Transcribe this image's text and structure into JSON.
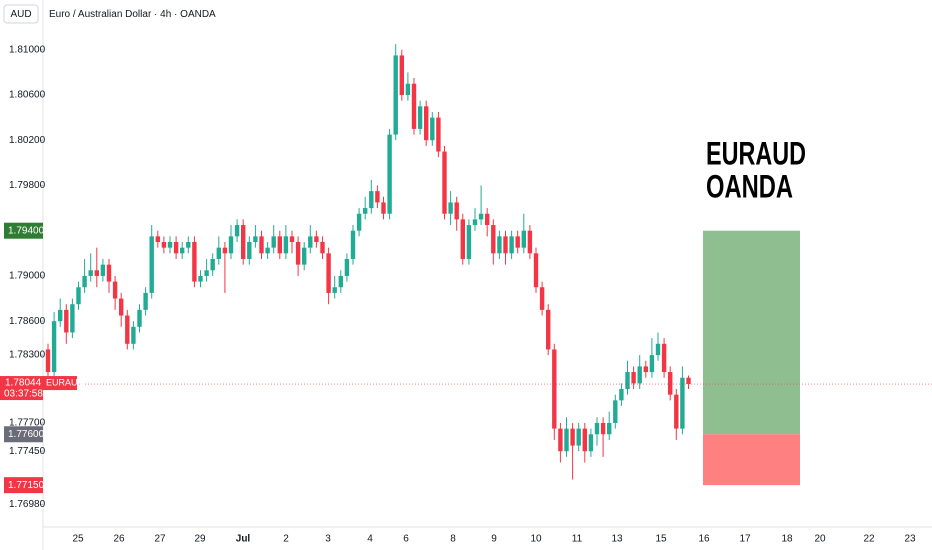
{
  "chart_data": {
    "type": "candlestick",
    "currency": "AUD",
    "title": "Euro / Australian Dollar · 4h · OANDA",
    "annotation": [
      "EURAUD",
      "OANDA"
    ],
    "colors": {
      "up": "#22ab94",
      "down": "#f23645"
    },
    "x_labels": [
      "25",
      "26",
      "27",
      "29",
      "Jul",
      "2",
      "3",
      "4",
      "6",
      "8",
      "9",
      "10",
      "11",
      "13",
      "15",
      "16",
      "17",
      "18",
      "20",
      "22",
      "23"
    ],
    "ylim": [
      1.8144,
      1.7678
    ],
    "yticks": [
      {
        "value": 1.81,
        "label": "1.81000"
      },
      {
        "value": 1.806,
        "label": "1.80600"
      },
      {
        "value": 1.802,
        "label": "1.80200"
      },
      {
        "value": 1.798,
        "label": "1.79800"
      },
      {
        "value": 1.79,
        "label": "1.79000"
      },
      {
        "value": 1.786,
        "label": "1.78600"
      },
      {
        "value": 1.783,
        "label": "1.78300"
      },
      {
        "value": 1.777,
        "label": "1.77700"
      },
      {
        "value": 1.7745,
        "label": "1.77450"
      },
      {
        "value": 1.7698,
        "label": "1.76980"
      }
    ],
    "current_price": {
      "value": 1.78044,
      "label": "1.78044",
      "symbol": "EURAUD",
      "countdown": "03:37:58"
    },
    "position": {
      "target": {
        "value": 1.794,
        "label": "1.79400",
        "color": "#7bb47d"
      },
      "entry": {
        "value": 1.776,
        "label": "1.77600",
        "color": "#6a6d78"
      },
      "stop": {
        "value": 1.7715,
        "label": "1.77150",
        "color": "#ff8080"
      }
    },
    "open": [
      1.7835,
      1.7815,
      1.786,
      1.787,
      1.785,
      1.7875,
      1.789,
      1.79,
      1.7905,
      1.79,
      1.791,
      1.7895,
      1.788,
      1.7865,
      1.784,
      1.7855,
      1.787,
      1.7885,
      1.7935,
      1.793,
      1.7925,
      1.793,
      1.792,
      1.7925,
      1.793,
      1.7895,
      1.79,
      1.7905,
      1.7915,
      1.7925,
      1.792,
      1.7935,
      1.7945,
      1.7915,
      1.793,
      1.7935,
      1.792,
      1.7925,
      1.7935,
      1.792,
      1.7935,
      1.793,
      1.791,
      1.7925,
      1.7935,
      1.793,
      1.792,
      1.7885,
      1.789,
      1.79,
      1.7915,
      1.794,
      1.7955,
      1.796,
      1.7975,
      1.7965,
      1.7955,
      1.8025,
      1.8095,
      1.806,
      1.807,
      1.803,
      1.805,
      1.802,
      1.804,
      1.801,
      1.7955,
      1.7965,
      1.795,
      1.7915,
      1.7945,
      1.795,
      1.7955,
      1.7945,
      1.792,
      1.7935,
      1.792,
      1.7935,
      1.7925,
      1.794,
      1.792,
      1.789,
      1.787,
      1.7835,
      1.7765,
      1.7745,
      1.7765,
      1.775,
      1.7765,
      1.7745,
      1.776,
      1.777,
      1.776,
      1.777,
      1.779,
      1.78,
      1.7815,
      1.7805,
      1.782,
      1.7815,
      1.783,
      1.784,
      1.7815,
      1.7795,
      1.7765,
      1.781
    ],
    "high": [
      1.784,
      1.7868,
      1.788,
      1.7875,
      1.788,
      1.7895,
      1.7915,
      1.792,
      1.7925,
      1.7915,
      1.7915,
      1.79,
      1.7885,
      1.787,
      1.786,
      1.7875,
      1.789,
      1.7945,
      1.794,
      1.7935,
      1.7935,
      1.7935,
      1.793,
      1.7935,
      1.7935,
      1.7905,
      1.7915,
      1.792,
      1.7935,
      1.793,
      1.7945,
      1.795,
      1.795,
      1.7935,
      1.7945,
      1.794,
      1.793,
      1.7945,
      1.794,
      1.7945,
      1.794,
      1.7935,
      1.793,
      1.7945,
      1.794,
      1.7935,
      1.7925,
      1.79,
      1.7905,
      1.792,
      1.7945,
      1.796,
      1.797,
      1.7985,
      1.798,
      1.797,
      1.803,
      1.8105,
      1.81,
      1.808,
      1.8075,
      1.8055,
      1.8055,
      1.8045,
      1.8045,
      1.8015,
      1.7975,
      1.797,
      1.7955,
      1.795,
      1.796,
      1.798,
      1.796,
      1.795,
      1.794,
      1.794,
      1.794,
      1.794,
      1.7955,
      1.7945,
      1.7925,
      1.7895,
      1.7875,
      1.784,
      1.777,
      1.7775,
      1.777,
      1.777,
      1.777,
      1.7765,
      1.7775,
      1.7775,
      1.778,
      1.7795,
      1.7805,
      1.7825,
      1.782,
      1.783,
      1.7825,
      1.7845,
      1.785,
      1.7845,
      1.782,
      1.78,
      1.782,
      1.7812
    ],
    "low": [
      1.7805,
      1.781,
      1.7855,
      1.784,
      1.7845,
      1.787,
      1.7885,
      1.7895,
      1.789,
      1.7895,
      1.7885,
      1.787,
      1.7855,
      1.7835,
      1.7835,
      1.785,
      1.7865,
      1.788,
      1.7925,
      1.792,
      1.792,
      1.7915,
      1.7915,
      1.792,
      1.789,
      1.789,
      1.7895,
      1.79,
      1.791,
      1.7885,
      1.7915,
      1.793,
      1.791,
      1.791,
      1.7925,
      1.7915,
      1.7915,
      1.792,
      1.7915,
      1.7915,
      1.792,
      1.79,
      1.7905,
      1.792,
      1.7925,
      1.7915,
      1.7875,
      1.788,
      1.7885,
      1.7895,
      1.791,
      1.7935,
      1.795,
      1.7955,
      1.796,
      1.795,
      1.795,
      1.802,
      1.8055,
      1.8055,
      1.8025,
      1.8025,
      1.8015,
      1.8015,
      1.8005,
      1.795,
      1.7945,
      1.794,
      1.791,
      1.791,
      1.794,
      1.7945,
      1.7935,
      1.791,
      1.7915,
      1.791,
      1.7915,
      1.792,
      1.792,
      1.7915,
      1.7885,
      1.7865,
      1.783,
      1.7755,
      1.7735,
      1.774,
      1.772,
      1.7745,
      1.7735,
      1.774,
      1.775,
      1.774,
      1.7755,
      1.7765,
      1.7785,
      1.7795,
      1.78,
      1.78,
      1.781,
      1.781,
      1.7825,
      1.781,
      1.779,
      1.7755,
      1.776,
      1.78
    ],
    "close": [
      1.7815,
      1.786,
      1.787,
      1.785,
      1.7875,
      1.789,
      1.79,
      1.7905,
      1.79,
      1.791,
      1.7895,
      1.788,
      1.7865,
      1.784,
      1.7855,
      1.787,
      1.7885,
      1.7935,
      1.793,
      1.7925,
      1.793,
      1.792,
      1.7925,
      1.793,
      1.7895,
      1.79,
      1.7905,
      1.7915,
      1.7925,
      1.792,
      1.7935,
      1.7945,
      1.7915,
      1.793,
      1.7935,
      1.792,
      1.7925,
      1.7935,
      1.792,
      1.7935,
      1.793,
      1.791,
      1.7925,
      1.7935,
      1.793,
      1.792,
      1.7885,
      1.789,
      1.79,
      1.7915,
      1.794,
      1.7955,
      1.796,
      1.7975,
      1.7965,
      1.7955,
      1.8025,
      1.8095,
      1.806,
      1.807,
      1.803,
      1.805,
      1.802,
      1.804,
      1.801,
      1.7955,
      1.7965,
      1.795,
      1.7915,
      1.7945,
      1.795,
      1.7955,
      1.7945,
      1.792,
      1.7935,
      1.792,
      1.7935,
      1.7925,
      1.794,
      1.792,
      1.789,
      1.787,
      1.7835,
      1.7765,
      1.7745,
      1.7765,
      1.775,
      1.7765,
      1.7745,
      1.776,
      1.777,
      1.776,
      1.777,
      1.779,
      1.78,
      1.7815,
      1.7805,
      1.782,
      1.7815,
      1.783,
      1.784,
      1.7815,
      1.7795,
      1.7765,
      1.781,
      1.78044
    ]
  }
}
